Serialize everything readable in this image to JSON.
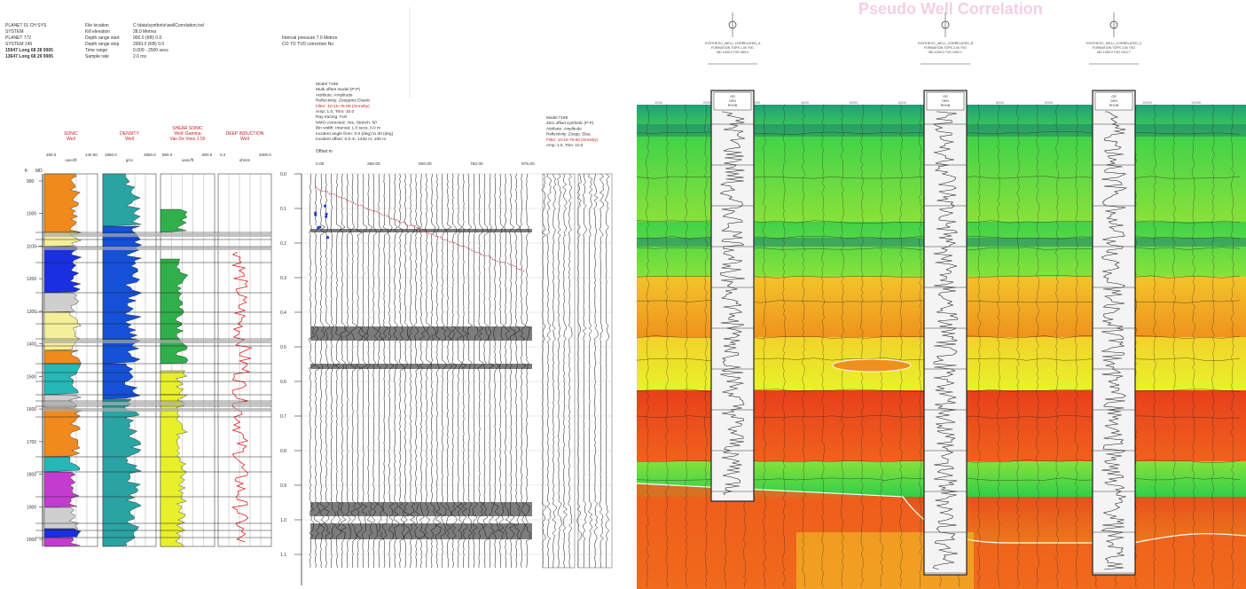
{
  "left_panel": {
    "header_left": [
      "PLANET 01 CH SYS",
      "SYSTEM",
      "PLANET 772",
      "SYSTEM 145",
      "15947 Long 68 28 9905",
      "13647 Long 68 29 9905"
    ],
    "header_mid_labels": [
      "File location",
      "Kill elevation",
      "Depth range start",
      "Depth range stop",
      "Time range",
      "Sample rate"
    ],
    "header_mid_values": [
      "C:\\data\\synthetic\\wellCorrelation.tvd",
      "28.0 Metres",
      "900.0 (KB) 0.0",
      "2900.0 (KB) 0.0",
      "0.000 - 2500 secs",
      "2.0 ms"
    ],
    "header_right": [
      "Interval pressure 7.0 Metres",
      "CO TO TVD correction No"
    ],
    "tracks": [
      {
        "title": [
          "SONIC",
          "Well"
        ],
        "unit": "usec/ft",
        "range": [
          "250.0",
          "140.00"
        ]
      },
      {
        "title": [
          "DENSITY",
          "Well"
        ],
        "unit": "g/cc",
        "range": [
          "1950.0",
          "2950.0"
        ]
      },
      {
        "title": [
          "SHEAR SONIC",
          "Well: Gamma",
          "Van De Vries 1 50"
        ],
        "unit": "usec/ft",
        "range": [
          "850.0",
          "800.0"
        ]
      },
      {
        "title": [
          "DEEP INDUCTION",
          "Well"
        ],
        "unit": "ohmm",
        "range": [
          "0.2",
          "2000.0"
        ]
      }
    ],
    "depth_header": [
      "ft",
      "MD"
    ],
    "depth_labels": [
      "900",
      "1000",
      "1100",
      "1200",
      "1300",
      "1400",
      "1500",
      "1600",
      "1700",
      "1800",
      "1900",
      "2000"
    ],
    "time_labels": [
      "0.0",
      "0.1",
      "0.2",
      "0.3",
      "0.4",
      "0.5",
      "0.6",
      "0.7",
      "0.8",
      "0.9",
      "1.0",
      "1.1"
    ],
    "gather_info": [
      "Model 7199",
      "Multi offset model (P-P)",
      "Attribute: Amplitude",
      "Reflectivity: Zoeppritz Elastic",
      "Filter: 10-15-75-90 (Ormsby)",
      "Amp: 1.0, Trim: 10.0",
      "Ray tracing: Full",
      "NMO corrected: Yes, Stretch: 50",
      "Bin width: Interval: 1.0 secs, 0.0 m",
      "Incident angle from: 0.0 (deg) to 30 (deg)",
      "Incident offset: 0.0 m, 1325 m: 100 m"
    ],
    "gather_info_highlight": 4,
    "offset_title": "Offset m",
    "offset_ticks": [
      "0.00",
      "250.00",
      "500.00",
      "750.00",
      "975.00"
    ],
    "stack_info": [
      "Model 7199",
      "Zero offset synthetic (P-P)",
      "Attribute: Amplitude",
      "Reflectivity: Zoepp. Elas.",
      "Filter: 10-15-75-90 (Ormsby)",
      "Amp: 1.0, Trim: 10.0"
    ],
    "stack_info_highlight": 4
  },
  "right_panel": {
    "title": "Pseudo Well Correlation",
    "wells": [
      {
        "label": [
          "SYNTHETIC_WELL_CORRELATED_A",
          "FORMATION TOPS 1.00 TVD",
          "MD 1000.0 TVD 989.4"
        ],
        "track_header": [
          "GR",
          "DEN",
          "RHOB"
        ]
      },
      {
        "label": [
          "SYNTHETIC_WELL_CORRELATED_B",
          "FORMATION TOPS 2.00 TVD",
          "MD 1000.0 TVD 1002.1"
        ],
        "track_header": [
          "GR",
          "DEN",
          "RHOB"
        ]
      },
      {
        "label": [
          "SYNTHETIC_WELL_CORRELATED_C",
          "FORMATION TOPS 3.00 TVD",
          "MD 1000.0 TVD 1012.7"
        ],
        "track_header": [
          "GR",
          "DEN",
          "RHOB"
        ]
      }
    ],
    "axis_ticks": [
      "1000",
      "2000",
      "3000",
      "4000",
      "5000",
      "6000",
      "7000",
      "8000",
      "9000",
      "10000",
      "11000",
      "12000"
    ]
  },
  "colors": {
    "sonic_orange": "#f08a1c",
    "sonic_blue": "#1a2fe0",
    "sonic_magenta": "#c43ccf",
    "sonic_yellow": "#f4ef9a",
    "sonic_teal": "#26b7b7",
    "density_blue": "#1550d8",
    "density_teal": "#2aa3a3",
    "shear_yellow": "#e8f02a",
    "shear_green": "#2fb04a",
    "induction_red": "#e02020",
    "band_gray": "#a8a8a8",
    "model_green": "#35d24a",
    "model_yellow": "#f2e22a",
    "model_orange": "#f08a1c",
    "model_red": "#e8401c",
    "model_teal": "#2aa98b"
  }
}
